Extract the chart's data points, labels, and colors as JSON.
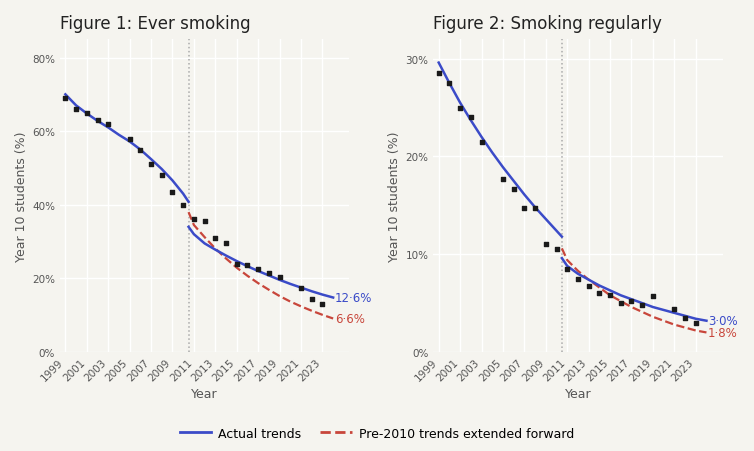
{
  "fig1_title": "Figure 1: Ever smoking",
  "fig2_title": "Figure 2: Smoking regularly",
  "xlabel": "Year",
  "ylabel": "Year 10 students (%)",
  "vline_year": 2010.5,
  "fig1_scatter_years": [
    1999,
    2000,
    2001,
    2002,
    2003,
    2005,
    2006,
    2007,
    2008,
    2009,
    2010,
    2011,
    2012,
    2013,
    2014,
    2015,
    2016,
    2017,
    2018,
    2019,
    2021,
    2022,
    2023
  ],
  "fig1_scatter_vals": [
    0.69,
    0.66,
    0.65,
    0.63,
    0.62,
    0.58,
    0.55,
    0.51,
    0.48,
    0.435,
    0.4,
    0.36,
    0.355,
    0.31,
    0.295,
    0.24,
    0.235,
    0.225,
    0.215,
    0.205,
    0.175,
    0.145,
    0.13
  ],
  "fig1_blue_years_pre": [
    1999,
    2000,
    2001,
    2002,
    2003,
    2004,
    2005,
    2006,
    2007,
    2008,
    2009,
    2010,
    2010.5
  ],
  "fig1_blue_vals_pre": [
    0.7,
    0.67,
    0.648,
    0.628,
    0.61,
    0.59,
    0.572,
    0.55,
    0.524,
    0.497,
    0.466,
    0.43,
    0.408
  ],
  "fig1_blue_years_post": [
    2010.5,
    2011,
    2012,
    2013,
    2014,
    2015,
    2016,
    2017,
    2018,
    2019,
    2020,
    2021,
    2022,
    2023,
    2024
  ],
  "fig1_blue_vals_post": [
    0.34,
    0.32,
    0.295,
    0.278,
    0.262,
    0.247,
    0.233,
    0.22,
    0.208,
    0.196,
    0.185,
    0.175,
    0.165,
    0.156,
    0.148
  ],
  "fig1_red_years": [
    2010.5,
    2011,
    2012,
    2013,
    2014,
    2015,
    2016,
    2017,
    2018,
    2019,
    2020,
    2021,
    2022,
    2023,
    2024
  ],
  "fig1_red_vals": [
    0.38,
    0.345,
    0.312,
    0.281,
    0.254,
    0.229,
    0.207,
    0.187,
    0.169,
    0.152,
    0.137,
    0.124,
    0.112,
    0.101,
    0.091
  ],
  "fig1_label_blue": "12·6%",
  "fig1_label_red": "6·6%",
  "fig1_ylim": [
    0,
    0.85
  ],
  "fig1_yticks": [
    0,
    0.2,
    0.4,
    0.6,
    0.8
  ],
  "fig1_ytick_labels": [
    "0%",
    "20%",
    "40%",
    "60%",
    "80%"
  ],
  "fig2_scatter_years": [
    1999,
    2000,
    2001,
    2002,
    2003,
    2005,
    2006,
    2007,
    2008,
    2009,
    2010,
    2011,
    2012,
    2013,
    2014,
    2015,
    2016,
    2017,
    2018,
    2019,
    2021,
    2022,
    2023
  ],
  "fig2_scatter_vals": [
    0.285,
    0.275,
    0.25,
    0.24,
    0.215,
    0.177,
    0.167,
    0.147,
    0.147,
    0.11,
    0.105,
    0.085,
    0.075,
    0.068,
    0.06,
    0.058,
    0.05,
    0.052,
    0.048,
    0.057,
    0.044,
    0.035,
    0.03
  ],
  "fig2_blue_years_pre": [
    1999,
    2000,
    2001,
    2002,
    2003,
    2004,
    2005,
    2006,
    2007,
    2008,
    2009,
    2010,
    2010.5
  ],
  "fig2_blue_vals_pre": [
    0.296,
    0.275,
    0.255,
    0.237,
    0.22,
    0.204,
    0.189,
    0.175,
    0.161,
    0.148,
    0.136,
    0.124,
    0.118
  ],
  "fig2_blue_years_post": [
    2010.5,
    2011,
    2012,
    2013,
    2014,
    2015,
    2016,
    2017,
    2018,
    2019,
    2020,
    2021,
    2022,
    2023,
    2024
  ],
  "fig2_blue_vals_post": [
    0.096,
    0.088,
    0.08,
    0.074,
    0.068,
    0.063,
    0.058,
    0.054,
    0.05,
    0.046,
    0.043,
    0.04,
    0.037,
    0.034,
    0.032
  ],
  "fig2_red_years": [
    2010.5,
    2011,
    2012,
    2013,
    2014,
    2015,
    2016,
    2017,
    2018,
    2019,
    2020,
    2021,
    2022,
    2023,
    2024
  ],
  "fig2_red_vals": [
    0.106,
    0.094,
    0.083,
    0.074,
    0.066,
    0.058,
    0.052,
    0.046,
    0.041,
    0.036,
    0.032,
    0.028,
    0.025,
    0.022,
    0.02
  ],
  "fig2_label_blue": "3·0%",
  "fig2_label_red": "1·8%",
  "fig2_ylim": [
    0,
    0.32
  ],
  "fig2_yticks": [
    0,
    0.1,
    0.2,
    0.3
  ],
  "fig2_ytick_labels": [
    "0%",
    "10%",
    "20%",
    "30%"
  ],
  "xtick_years": [
    1999,
    2001,
    2003,
    2005,
    2007,
    2009,
    2011,
    2013,
    2015,
    2017,
    2019,
    2021,
    2023
  ],
  "xlim": [
    1998.5,
    2025.5
  ],
  "blue_color": "#3B4BC8",
  "red_color": "#C8463B",
  "scatter_color": "#1a1a1a",
  "bg_color": "#f5f4ef",
  "grid_color": "#ffffff",
  "vline_color": "#aaaaaa",
  "legend_blue_label": "Actual trends",
  "legend_red_label": "Pre-2010 trends extended forward",
  "title_fontsize": 12,
  "axis_label_fontsize": 9,
  "tick_fontsize": 7.5,
  "annot_fontsize": 8.5
}
